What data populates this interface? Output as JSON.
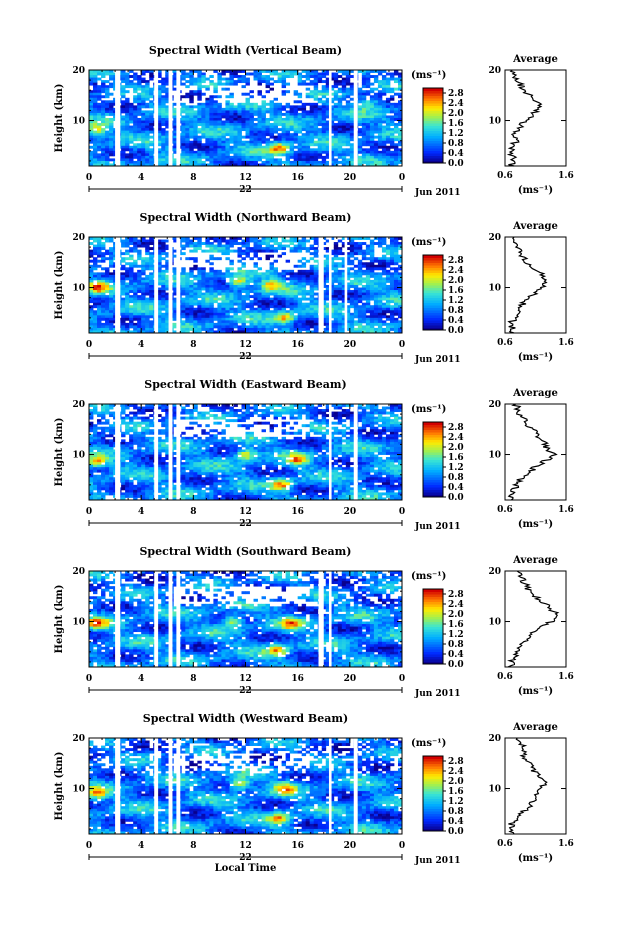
{
  "chart_data": [
    {
      "type": "heatmap",
      "title": "Spectral Width (Vertical Beam)",
      "beam": "vertical",
      "ylabel": "Height (km)",
      "xlabel": "",
      "ylim": [
        1,
        20
      ],
      "xlim": [
        0,
        24
      ],
      "x_ticks": [
        "0",
        "4",
        "8",
        "12",
        "16",
        "20",
        "0"
      ],
      "y_ticks": [
        "20",
        "10"
      ],
      "date_day": "22",
      "date_month_year": "Jun 2011",
      "colorbar": {
        "unit": "(ms⁻¹)",
        "ticks": [
          "2.8",
          "2.4",
          "2.0",
          "1.6",
          "1.2",
          "0.8",
          "0.4",
          "0.0"
        ],
        "range": [
          0,
          3.0
        ]
      },
      "gaps_hours": [
        [
          2.0,
          2.4
        ],
        [
          5.0,
          5.3
        ],
        [
          6.1,
          6.4
        ],
        [
          6.7,
          7.0
        ],
        [
          18.4,
          18.6
        ],
        [
          20.3,
          20.6
        ]
      ],
      "hotspots": [
        {
          "t": 0.6,
          "h": 8.0,
          "value": 2.4
        },
        {
          "t": 14.6,
          "h": 4.5,
          "value": 2.6
        },
        {
          "t": 21.5,
          "h": 13.5,
          "value": 2.0
        }
      ],
      "average": {
        "title": "Average",
        "xlabel": "(ms⁻¹)",
        "xlim": [
          0.6,
          1.6
        ],
        "x_ticks": [
          "0.6",
          "1.6"
        ],
        "y_ticks": [
          "20",
          "10"
        ],
        "height_km": [
          1,
          2,
          3,
          4,
          5,
          6,
          7,
          8,
          9,
          10,
          11,
          12,
          13,
          14,
          15,
          16,
          17,
          18,
          19,
          20
        ],
        "width_ms": [
          0.7,
          0.75,
          0.72,
          0.7,
          0.74,
          0.78,
          0.76,
          0.8,
          0.85,
          0.95,
          1.05,
          1.1,
          1.15,
          1.1,
          1.0,
          0.92,
          0.85,
          0.8,
          0.75,
          0.72
        ]
      }
    },
    {
      "type": "heatmap",
      "title": "Spectral Width (Northward Beam)",
      "beam": "northward",
      "ylabel": "Height (km)",
      "xlabel": "",
      "ylim": [
        1,
        20
      ],
      "xlim": [
        0,
        24
      ],
      "x_ticks": [
        "0",
        "4",
        "8",
        "12",
        "16",
        "20",
        "0"
      ],
      "y_ticks": [
        "20",
        "10"
      ],
      "date_day": "22",
      "date_month_year": "Jun 2011",
      "colorbar": {
        "unit": "(ms⁻¹)",
        "ticks": [
          "2.8",
          "2.4",
          "2.0",
          "1.6",
          "1.2",
          "0.8",
          "0.4",
          "0.0"
        ],
        "range": [
          0,
          3.0
        ]
      },
      "gaps_hours": [
        [
          2.0,
          2.4
        ],
        [
          5.0,
          5.3
        ],
        [
          6.1,
          6.4
        ],
        [
          6.7,
          7.0
        ],
        [
          17.6,
          18.0
        ],
        [
          18.4,
          18.6
        ],
        [
          19.6,
          19.8
        ]
      ],
      "hotspots": [
        {
          "t": 0.7,
          "h": 10.0,
          "value": 2.4
        },
        {
          "t": 11.5,
          "h": 11.0,
          "value": 2.6
        },
        {
          "t": 15.0,
          "h": 4.0,
          "value": 2.5
        },
        {
          "t": 14.0,
          "h": 10.5,
          "value": 2.3
        }
      ],
      "average": {
        "title": "Average",
        "xlabel": "(ms⁻¹)",
        "xlim": [
          0.6,
          1.6
        ],
        "x_ticks": [
          "0.6",
          "1.6"
        ],
        "y_ticks": [
          "20",
          "10"
        ],
        "height_km": [
          1,
          2,
          3,
          4,
          5,
          6,
          7,
          8,
          9,
          10,
          11,
          12,
          13,
          14,
          15,
          16,
          17,
          18,
          19,
          20
        ],
        "width_ms": [
          0.7,
          0.72,
          0.7,
          0.75,
          0.8,
          0.85,
          0.9,
          1.0,
          1.1,
          1.2,
          1.3,
          1.25,
          1.15,
          1.05,
          0.95,
          0.9,
          0.85,
          0.8,
          0.78,
          0.75
        ]
      }
    },
    {
      "type": "heatmap",
      "title": "Spectral Width (Eastward Beam)",
      "beam": "eastward",
      "ylabel": "Height (km)",
      "xlabel": "",
      "ylim": [
        1,
        20
      ],
      "xlim": [
        0,
        24
      ],
      "x_ticks": [
        "0",
        "4",
        "8",
        "12",
        "16",
        "20",
        "0"
      ],
      "y_ticks": [
        "20",
        "10"
      ],
      "date_day": "22",
      "date_month_year": "Jun 2011",
      "colorbar": {
        "unit": "(ms⁻¹)",
        "ticks": [
          "2.8",
          "2.4",
          "2.0",
          "1.6",
          "1.2",
          "0.8",
          "0.4",
          "0.0"
        ],
        "range": [
          0,
          3.0
        ]
      },
      "gaps_hours": [
        [
          2.0,
          2.4
        ],
        [
          5.0,
          5.3
        ],
        [
          6.1,
          6.4
        ],
        [
          6.7,
          7.0
        ],
        [
          18.4,
          18.6
        ],
        [
          20.3,
          20.6
        ]
      ],
      "hotspots": [
        {
          "t": 0.6,
          "h": 8.5,
          "value": 2.4
        },
        {
          "t": 12.0,
          "h": 10.0,
          "value": 2.5
        },
        {
          "t": 14.8,
          "h": 4.0,
          "value": 2.6
        },
        {
          "t": 16.0,
          "h": 9.0,
          "value": 2.3
        }
      ],
      "average": {
        "title": "Average",
        "xlabel": "(ms⁻¹)",
        "xlim": [
          0.6,
          1.6
        ],
        "x_ticks": [
          "0.6",
          "1.6"
        ],
        "y_ticks": [
          "20",
          "10"
        ],
        "height_km": [
          1,
          2,
          3,
          4,
          5,
          6,
          7,
          8,
          9,
          10,
          11,
          12,
          13,
          14,
          15,
          16,
          17,
          18,
          19,
          20
        ],
        "width_ms": [
          0.72,
          0.7,
          0.75,
          0.8,
          0.85,
          0.95,
          1.05,
          1.15,
          1.3,
          1.4,
          1.3,
          1.25,
          1.2,
          1.1,
          1.05,
          0.95,
          0.9,
          0.85,
          0.8,
          0.78
        ]
      }
    },
    {
      "type": "heatmap",
      "title": "Spectral Width (Southward Beam)",
      "beam": "southward",
      "ylabel": "Height (km)",
      "xlabel": "",
      "ylim": [
        1,
        20
      ],
      "xlim": [
        0,
        24
      ],
      "x_ticks": [
        "0",
        "4",
        "8",
        "12",
        "16",
        "20",
        "0"
      ],
      "y_ticks": [
        "20",
        "10"
      ],
      "date_day": "22",
      "date_month_year": "Jun 2011",
      "colorbar": {
        "unit": "(ms⁻¹)",
        "ticks": [
          "2.8",
          "2.4",
          "2.0",
          "1.6",
          "1.2",
          "0.8",
          "0.4",
          "0.0"
        ],
        "range": [
          0,
          3.0
        ]
      },
      "gaps_hours": [
        [
          2.0,
          2.4
        ],
        [
          5.0,
          5.3
        ],
        [
          6.1,
          6.4
        ],
        [
          6.7,
          7.0
        ],
        [
          17.6,
          18.0
        ],
        [
          18.4,
          18.6
        ]
      ],
      "hotspots": [
        {
          "t": 0.6,
          "h": 9.5,
          "value": 2.5
        },
        {
          "t": 11.0,
          "h": 10.0,
          "value": 2.4
        },
        {
          "t": 14.5,
          "h": 4.5,
          "value": 2.5
        },
        {
          "t": 15.5,
          "h": 9.5,
          "value": 2.3
        }
      ],
      "average": {
        "title": "Average",
        "xlabel": "(ms⁻¹)",
        "xlim": [
          0.6,
          1.6
        ],
        "x_ticks": [
          "0.6",
          "1.6"
        ],
        "y_ticks": [
          "20",
          "10"
        ],
        "height_km": [
          1,
          2,
          3,
          4,
          5,
          6,
          7,
          8,
          9,
          10,
          11,
          12,
          13,
          14,
          15,
          16,
          17,
          18,
          19,
          20
        ],
        "width_ms": [
          0.7,
          0.72,
          0.75,
          0.8,
          0.85,
          0.9,
          1.0,
          1.1,
          1.2,
          1.35,
          1.45,
          1.4,
          1.3,
          1.2,
          1.1,
          1.0,
          0.95,
          0.9,
          0.85,
          0.8
        ]
      }
    },
    {
      "type": "heatmap",
      "title": "Spectral Width (Westward Beam)",
      "beam": "westward",
      "ylabel": "Height (km)",
      "xlabel": "Local Time",
      "ylim": [
        1,
        20
      ],
      "xlim": [
        0,
        24
      ],
      "x_ticks": [
        "0",
        "4",
        "8",
        "12",
        "16",
        "20",
        "0"
      ],
      "y_ticks": [
        "20",
        "10"
      ],
      "date_day": "22",
      "date_month_year": "Jun 2011",
      "colorbar": {
        "unit": "(ms⁻¹)",
        "ticks": [
          "2.8",
          "2.4",
          "2.0",
          "1.6",
          "1.2",
          "0.8",
          "0.4",
          "0.0"
        ],
        "range": [
          0,
          3.0
        ]
      },
      "gaps_hours": [
        [
          2.0,
          2.4
        ],
        [
          5.0,
          5.3
        ],
        [
          6.1,
          6.4
        ],
        [
          6.7,
          7.0
        ],
        [
          18.4,
          18.6
        ],
        [
          20.3,
          20.6
        ]
      ],
      "hotspots": [
        {
          "t": 0.6,
          "h": 9.0,
          "value": 2.4
        },
        {
          "t": 11.5,
          "h": 11.0,
          "value": 2.5
        },
        {
          "t": 14.6,
          "h": 4.0,
          "value": 2.6
        },
        {
          "t": 15.0,
          "h": 10.0,
          "value": 2.3
        }
      ],
      "average": {
        "title": "Average",
        "xlabel": "(ms⁻¹)",
        "xlim": [
          0.6,
          1.6
        ],
        "x_ticks": [
          "0.6",
          "1.6"
        ],
        "y_ticks": [
          "20",
          "10"
        ],
        "height_km": [
          1,
          2,
          3,
          4,
          5,
          6,
          7,
          8,
          9,
          10,
          11,
          12,
          13,
          14,
          15,
          16,
          17,
          18,
          19,
          20
        ],
        "width_ms": [
          0.75,
          0.72,
          0.7,
          0.78,
          0.85,
          0.95,
          1.05,
          1.1,
          1.15,
          1.2,
          1.25,
          1.2,
          1.1,
          1.05,
          1.0,
          0.95,
          0.9,
          0.9,
          0.85,
          0.8
        ]
      }
    }
  ]
}
